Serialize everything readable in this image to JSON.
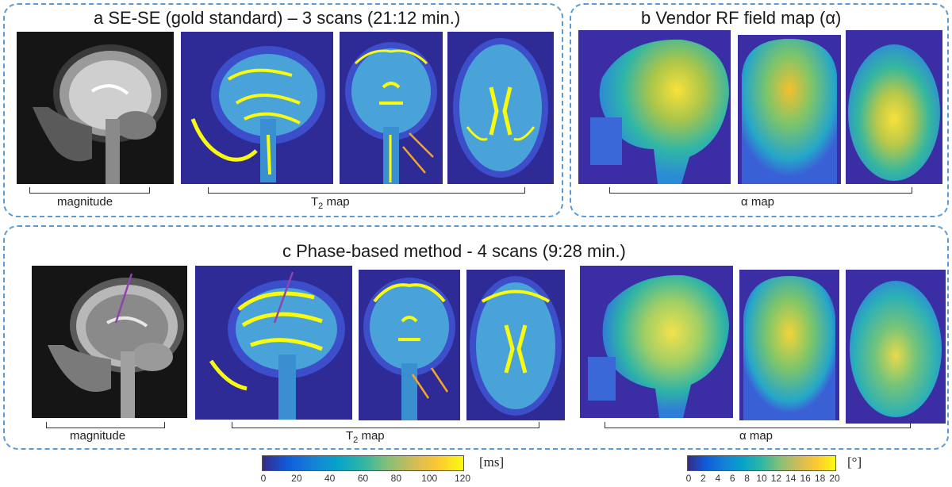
{
  "panel_a": {
    "title": "a  SE-SE (gold standard) – 3 scans (21:12 min.)",
    "magnitude_label": "magnitude",
    "t2_label_main": "T",
    "t2_label_sub": "2",
    "t2_label_rest": " map"
  },
  "panel_b": {
    "title": "b  Vendor RF field map (α)",
    "alpha_label": "α map"
  },
  "panel_c": {
    "title": "c  Phase-based method  - 4 scans (9:28 min.)",
    "magnitude_label": "magnitude",
    "t2_label_main": "T",
    "t2_label_sub": "2",
    "t2_label_rest": " map",
    "alpha_label": "α map"
  },
  "colorbar_t2": {
    "ticks": [
      "0",
      "20",
      "40",
      "60",
      "80",
      "100",
      "120"
    ],
    "unit": "[ms]"
  },
  "colorbar_alpha": {
    "ticks": [
      "0",
      "2",
      "4",
      "6",
      "8",
      "10",
      "12",
      "14",
      "16",
      "18",
      "20"
    ],
    "unit": "[°]"
  },
  "colors": {
    "panel_border": "#5b9bd5",
    "parula_low": "#352a87",
    "parula_high": "#f9fb0e",
    "arrow_orange": "#f5a623",
    "arrow_purple": "#8e44ad"
  }
}
